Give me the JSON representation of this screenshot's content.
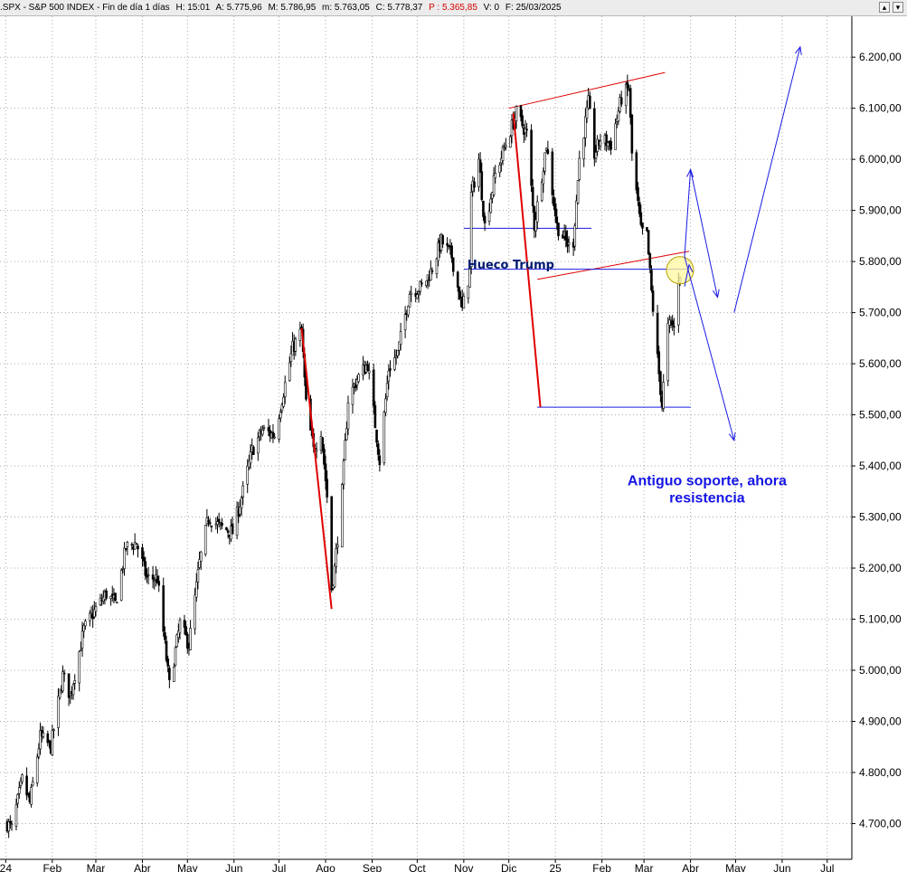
{
  "header": {
    "symbol": ".SPX - S&P 500 INDEX - Fin de día 1 días",
    "high_label": "H: 15:01",
    "open": "A: 5.775,96",
    "max": "M: 5.786,95",
    "min": "m: 5.763,05",
    "close": "C: 5.778,37",
    "p_value": "P : 5.365,85",
    "volume": "V: 0",
    "date": "F: 25/03/2025"
  },
  "window_buttons": [
    "▴",
    "▾"
  ],
  "colors": {
    "candles": "#000000",
    "trend_red": "#e00000",
    "support_blue": "#1a1ae6",
    "annotation_navy": "#001a6e",
    "circle_fill": "#fff8a0"
  },
  "chart_data": {
    "type": "candlestick",
    "title": "",
    "ylim": [
      4630,
      6280
    ],
    "y_ticks": [
      4700,
      4800,
      4900,
      5000,
      5100,
      5200,
      5300,
      5400,
      5500,
      5600,
      5700,
      5800,
      5900,
      6000,
      6100,
      6200
    ],
    "y_tick_labels": [
      "4.700,00",
      "4.800,00",
      "4.900,00",
      "5.000,00",
      "5.100,00",
      "5.200,00",
      "5.300,00",
      "5.400,00",
      "5.500,00",
      "5.600,00",
      "5.700,00",
      "5.800,00",
      "5.900,00",
      "6.000,00",
      "6.100,00",
      "6.200,00"
    ],
    "x_range": [
      "2024-01-02",
      "2025-07-15"
    ],
    "x_ticks": [
      {
        "date": "2024-01-01",
        "label": "24"
      },
      {
        "date": "2024-02-01",
        "label": "Feb"
      },
      {
        "date": "2024-03-01",
        "label": "Mar"
      },
      {
        "date": "2024-04-01",
        "label": "Abr"
      },
      {
        "date": "2024-05-01",
        "label": "May"
      },
      {
        "date": "2024-06-01",
        "label": "Jun"
      },
      {
        "date": "2024-07-01",
        "label": "Jul"
      },
      {
        "date": "2024-08-01",
        "label": "Ago"
      },
      {
        "date": "2024-09-01",
        "label": "Sep"
      },
      {
        "date": "2024-10-01",
        "label": "Oct"
      },
      {
        "date": "2024-11-01",
        "label": "Nov"
      },
      {
        "date": "2024-12-01",
        "label": "Dic"
      },
      {
        "date": "2025-01-01",
        "label": "25"
      },
      {
        "date": "2025-02-01",
        "label": "Feb"
      },
      {
        "date": "2025-03-01",
        "label": "Mar"
      },
      {
        "date": "2025-04-01",
        "label": "Abr"
      },
      {
        "date": "2025-05-01",
        "label": "May"
      },
      {
        "date": "2025-06-01",
        "label": "Jun"
      },
      {
        "date": "2025-07-01",
        "label": "Jul"
      }
    ],
    "grid": true,
    "close_path": [
      [
        "2024-01-02",
        4700
      ],
      [
        "2024-01-05",
        4690
      ],
      [
        "2024-01-12",
        4785
      ],
      [
        "2024-01-17",
        4740
      ],
      [
        "2024-01-24",
        4870
      ],
      [
        "2024-01-31",
        4850
      ],
      [
        "2024-02-08",
        4990
      ],
      [
        "2024-02-13",
        4950
      ],
      [
        "2024-02-22",
        5080
      ],
      [
        "2024-03-01",
        5120
      ],
      [
        "2024-03-08",
        5150
      ],
      [
        "2024-03-14",
        5130
      ],
      [
        "2024-03-21",
        5240
      ],
      [
        "2024-03-28",
        5250
      ],
      [
        "2024-04-04",
        5180
      ],
      [
        "2024-04-11",
        5180
      ],
      [
        "2024-04-19",
        4970
      ],
      [
        "2024-04-26",
        5090
      ],
      [
        "2024-05-02",
        5050
      ],
      [
        "2024-05-09",
        5210
      ],
      [
        "2024-05-15",
        5300
      ],
      [
        "2024-05-23",
        5280
      ],
      [
        "2024-05-31",
        5270
      ],
      [
        "2024-06-07",
        5350
      ],
      [
        "2024-06-13",
        5430
      ],
      [
        "2024-06-20",
        5470
      ],
      [
        "2024-06-28",
        5460
      ],
      [
        "2024-07-05",
        5560
      ],
      [
        "2024-07-10",
        5630
      ],
      [
        "2024-07-16",
        5665
      ],
      [
        "2024-07-19",
        5520
      ],
      [
        "2024-07-24",
        5430
      ],
      [
        "2024-07-29",
        5470
      ],
      [
        "2024-08-02",
        5340
      ],
      [
        "2024-08-05",
        5160
      ],
      [
        "2024-08-07",
        5200
      ],
      [
        "2024-08-12",
        5350
      ],
      [
        "2024-08-16",
        5530
      ],
      [
        "2024-08-22",
        5570
      ],
      [
        "2024-08-29",
        5600
      ],
      [
        "2024-09-06",
        5410
      ],
      [
        "2024-09-12",
        5590
      ],
      [
        "2024-09-18",
        5620
      ],
      [
        "2024-09-26",
        5740
      ],
      [
        "2024-10-04",
        5750
      ],
      [
        "2024-10-10",
        5780
      ],
      [
        "2024-10-17",
        5840
      ],
      [
        "2024-10-24",
        5810
      ],
      [
        "2024-10-31",
        5705
      ],
      [
        "2024-11-05",
        5780
      ],
      [
        "2024-11-06",
        5930
      ],
      [
        "2024-11-11",
        6000
      ],
      [
        "2024-11-15",
        5870
      ],
      [
        "2024-11-22",
        5970
      ],
      [
        "2024-11-29",
        6030
      ],
      [
        "2024-12-06",
        6090
      ],
      [
        "2024-12-13",
        6050
      ],
      [
        "2024-12-18",
        5870
      ],
      [
        "2024-12-26",
        6030
      ],
      [
        "2025-01-02",
        5870
      ],
      [
        "2025-01-10",
        5830
      ],
      [
        "2025-01-13",
        5840
      ],
      [
        "2025-01-17",
        6000
      ],
      [
        "2025-01-23",
        6110
      ],
      [
        "2025-01-27",
        6010
      ],
      [
        "2025-01-31",
        6040
      ],
      [
        "2025-02-07",
        6030
      ],
      [
        "2025-02-14",
        6120
      ],
      [
        "2025-02-19",
        6140
      ],
      [
        "2025-02-21",
        6010
      ],
      [
        "2025-02-27",
        5860
      ],
      [
        "2025-03-03",
        5850
      ],
      [
        "2025-03-06",
        5740
      ],
      [
        "2025-03-10",
        5610
      ],
      [
        "2025-03-13",
        5520
      ],
      [
        "2025-03-17",
        5670
      ],
      [
        "2025-03-19",
        5680
      ],
      [
        "2025-03-21",
        5670
      ],
      [
        "2025-03-24",
        5770
      ],
      [
        "2025-03-25",
        5778
      ]
    ],
    "overlays": {
      "channel_upper": [
        [
          "2024-12-01",
          6100
        ],
        [
          "2025-03-15",
          6170
        ]
      ],
      "channel_lower": [
        [
          "2024-12-20",
          5765
        ],
        [
          "2025-03-31",
          5820
        ]
      ],
      "red_decline_jul_aug": [
        [
          "2024-07-16",
          5670
        ],
        [
          "2024-08-05",
          5120
        ]
      ],
      "red_decline_dec_mar": [
        [
          "2024-12-04",
          6090
        ],
        [
          "2024-12-22",
          5515
        ]
      ],
      "hueco_trump_line": [
        [
          "2024-11-01",
          5785
        ],
        [
          "2025-04-01",
          5785
        ]
      ],
      "support_upper_box": [
        [
          "2024-11-01",
          5865
        ],
        [
          "2025-01-25",
          5865
        ]
      ],
      "support_low_line": [
        [
          "2024-12-20",
          5515
        ],
        [
          "2025-04-01",
          5515
        ]
      ],
      "projection_up": [
        [
          "2025-03-28",
          5810
        ],
        [
          "2025-04-01",
          5980
        ],
        [
          "2025-04-19",
          5730
        ],
        [
          "2025-04-30",
          5700
        ],
        [
          "2025-06-13",
          6220
        ]
      ],
      "projection_down": [
        [
          "2025-03-28",
          5810
        ],
        [
          "2025-04-30",
          5450
        ]
      ],
      "highlight_circle": {
        "date": "2025-03-25",
        "value": 5783
      }
    },
    "annotations": [
      {
        "text": "Hueco Trump",
        "date": "2024-11-01",
        "value": 5797
      },
      {
        "text": "Antiguo soporte, ahora",
        "date": "2025-04-12",
        "value": 5380
      },
      {
        "text": "resistencia",
        "date": "2025-04-12",
        "value": 5350
      }
    ]
  }
}
